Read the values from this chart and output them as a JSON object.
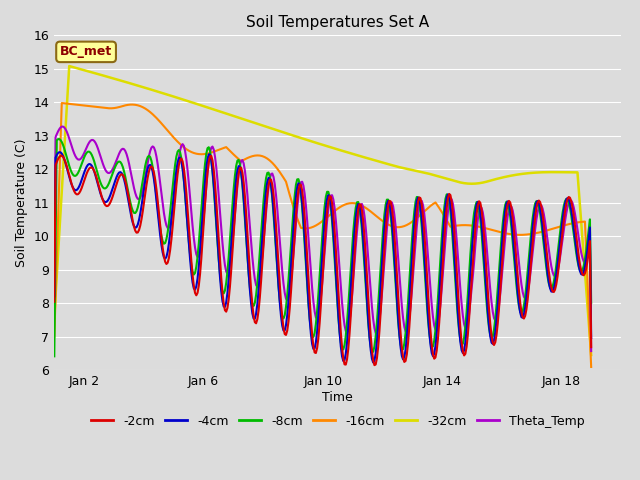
{
  "title": "Soil Temperatures Set A",
  "xlabel": "Time",
  "ylabel": "Soil Temperature (C)",
  "ylim": [
    6.0,
    16.0
  ],
  "yticks": [
    6.0,
    7.0,
    8.0,
    9.0,
    10.0,
    11.0,
    12.0,
    13.0,
    14.0,
    15.0,
    16.0
  ],
  "xtick_labels": [
    "Jan 2",
    "Jan 6",
    "Jan 10",
    "Jan 14",
    "Jan 18"
  ],
  "xtick_positions": [
    1,
    5,
    9,
    13,
    17
  ],
  "bg_color": "#dcdcdc",
  "plot_bg_color": "#dcdcdc",
  "annotation_text": "BC_met",
  "annotation_bg": "#ffff99",
  "annotation_border": "#8B6914",
  "annotation_text_color": "#8B0000",
  "series_colors": {
    "-2cm": "#dd0000",
    "-4cm": "#0000cc",
    "-8cm": "#00bb00",
    "-16cm": "#ff8800",
    "-32cm": "#dddd00",
    "Theta_Temp": "#aa00cc"
  },
  "series_linewidths": {
    "-2cm": 1.5,
    "-4cm": 1.5,
    "-8cm": 1.5,
    "-16cm": 1.5,
    "-32cm": 1.8,
    "Theta_Temp": 1.5
  },
  "grid_color": "#ffffff",
  "title_fontsize": 11,
  "axis_fontsize": 9,
  "legend_fontsize": 9
}
